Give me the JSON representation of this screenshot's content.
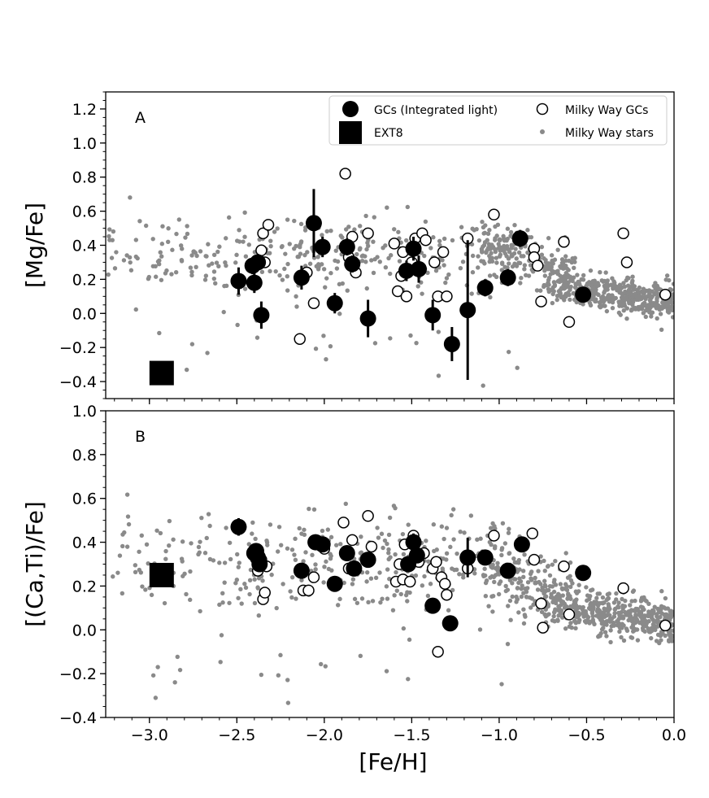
{
  "chart_data": [
    {
      "type": "scatter",
      "panel_label": "A",
      "ylabel": "[Mg/Fe]",
      "xlabel": "",
      "xlim": [
        -3.25,
        0.0
      ],
      "ylim": [
        -0.5,
        1.3
      ],
      "yticks": [
        -0.4,
        -0.2,
        0.0,
        0.2,
        0.4,
        0.6,
        0.8,
        1.0,
        1.2
      ],
      "ytick_labels": [
        "−0.4",
        "−0.2",
        "0.0",
        "0.2",
        "0.4",
        "0.6",
        "0.8",
        "1.0",
        "1.2"
      ],
      "legend": {
        "placement": "top-right",
        "entries": [
          "GCs (Integrated light)",
          "EXT8",
          "Milky Way GCs",
          "Milky Way stars"
        ]
      },
      "series": [
        {
          "name": "EXT8",
          "marker": "filled-square",
          "points": [
            [
              -2.93,
              -0.35
            ]
          ]
        },
        {
          "name": "GCs (Integrated light)",
          "marker": "filled-circle",
          "points": [
            [
              -2.49,
              0.19,
              0.08
            ],
            [
              -2.41,
              0.28,
              0.05
            ],
            [
              -2.4,
              0.18,
              0.06
            ],
            [
              -2.38,
              0.3,
              0.05
            ],
            [
              -2.36,
              -0.01,
              0.08
            ],
            [
              -2.13,
              0.21,
              0.07
            ],
            [
              -2.06,
              0.53,
              0.2
            ],
            [
              -2.01,
              0.39,
              0.06
            ],
            [
              -1.94,
              0.06,
              0.06
            ],
            [
              -1.87,
              0.39,
              0.05
            ],
            [
              -1.84,
              0.29,
              0.05
            ],
            [
              -1.75,
              -0.03,
              0.11
            ],
            [
              -1.53,
              0.25,
              0.06
            ],
            [
              -1.49,
              0.38,
              0.07
            ],
            [
              -1.46,
              0.26,
              0.08
            ],
            [
              -1.38,
              -0.01,
              0.09
            ],
            [
              -1.27,
              -0.18,
              0.1
            ],
            [
              -1.18,
              0.02,
              0.41
            ],
            [
              -1.08,
              0.15,
              0.05
            ],
            [
              -0.95,
              0.21,
              0.05
            ],
            [
              -0.88,
              0.44,
              0.05
            ],
            [
              -0.52,
              0.11,
              0.04
            ]
          ]
        },
        {
          "name": "Milky Way GCs",
          "marker": "open-circle",
          "points": [
            [
              -2.36,
              0.37
            ],
            [
              -2.35,
              0.47
            ],
            [
              -2.34,
              0.3
            ],
            [
              -2.32,
              0.52
            ],
            [
              -2.14,
              -0.15
            ],
            [
              -2.1,
              0.24
            ],
            [
              -2.06,
              0.06
            ],
            [
              -1.88,
              0.82
            ],
            [
              -1.86,
              0.33
            ],
            [
              -1.84,
              0.45
            ],
            [
              -1.82,
              0.24
            ],
            [
              -1.75,
              0.47
            ],
            [
              -1.6,
              0.41
            ],
            [
              -1.58,
              0.13
            ],
            [
              -1.56,
              0.22
            ],
            [
              -1.55,
              0.36
            ],
            [
              -1.53,
              0.1
            ],
            [
              -1.5,
              0.3
            ],
            [
              -1.48,
              0.44
            ],
            [
              -1.44,
              0.47
            ],
            [
              -1.42,
              0.43
            ],
            [
              -1.37,
              0.3
            ],
            [
              -1.35,
              0.1
            ],
            [
              -1.32,
              0.36
            ],
            [
              -1.3,
              0.1
            ],
            [
              -1.18,
              0.44
            ],
            [
              -1.03,
              0.58
            ],
            [
              -0.8,
              0.38
            ],
            [
              -0.8,
              0.33
            ],
            [
              -0.78,
              0.28
            ],
            [
              -0.76,
              0.07
            ],
            [
              -0.63,
              0.42
            ],
            [
              -0.6,
              -0.05
            ],
            [
              -0.29,
              0.47
            ],
            [
              -0.27,
              0.3
            ],
            [
              -0.05,
              0.11
            ]
          ]
        },
        {
          "name": "Milky Way stars",
          "marker": "small-dot",
          "count_approx": 900
        }
      ]
    },
    {
      "type": "scatter",
      "panel_label": "B",
      "ylabel": "[(Ca,Ti)/Fe]",
      "xlabel": "[Fe/H]",
      "xlim": [
        -3.25,
        0.0
      ],
      "ylim": [
        -0.4,
        1.0
      ],
      "xticks": [
        -3.0,
        -2.5,
        -2.0,
        -1.5,
        -1.0,
        -0.5,
        0.0
      ],
      "xtick_labels": [
        "−3.0",
        "−2.5",
        "−2.0",
        "−1.5",
        "−1.0",
        "−0.5",
        "0.0"
      ],
      "yticks": [
        -0.4,
        -0.2,
        0.0,
        0.2,
        0.4,
        0.6,
        0.8,
        1.0
      ],
      "ytick_labels": [
        "−0.4",
        "−0.2",
        "0.0",
        "0.2",
        "0.4",
        "0.6",
        "0.8",
        "1.0"
      ],
      "series": [
        {
          "name": "EXT8",
          "marker": "filled-square",
          "points": [
            [
              -2.93,
              0.25
            ]
          ]
        },
        {
          "name": "GCs (Integrated light)",
          "marker": "filled-circle",
          "points": [
            [
              -2.49,
              0.47,
              0.04
            ],
            [
              -2.4,
              0.35,
              0.03
            ],
            [
              -2.39,
              0.36,
              0.03
            ],
            [
              -2.38,
              0.33,
              0.03
            ],
            [
              -2.37,
              0.3,
              0.03
            ],
            [
              -2.13,
              0.27,
              0.03
            ],
            [
              -2.05,
              0.4,
              0.03
            ],
            [
              -2.01,
              0.39,
              0.03
            ],
            [
              -1.94,
              0.21,
              0.03
            ],
            [
              -1.87,
              0.35,
              0.03
            ],
            [
              -1.83,
              0.28,
              0.03
            ],
            [
              -1.75,
              0.32,
              0.03
            ],
            [
              -1.52,
              0.3,
              0.03
            ],
            [
              -1.49,
              0.4,
              0.04
            ],
            [
              -1.47,
              0.34,
              0.03
            ],
            [
              -1.38,
              0.11,
              0.03
            ],
            [
              -1.28,
              0.03,
              0.03
            ],
            [
              -1.18,
              0.33,
              0.09
            ],
            [
              -1.08,
              0.33,
              0.03
            ],
            [
              -0.95,
              0.27,
              0.03
            ],
            [
              -0.87,
              0.39,
              0.03
            ],
            [
              -0.52,
              0.26,
              0.03
            ]
          ]
        },
        {
          "name": "Milky Way GCs",
          "marker": "open-circle",
          "points": [
            [
              -2.38,
              0.27
            ],
            [
              -2.36,
              0.32
            ],
            [
              -2.35,
              0.14
            ],
            [
              -2.34,
              0.17
            ],
            [
              -2.33,
              0.29
            ],
            [
              -2.12,
              0.18
            ],
            [
              -2.09,
              0.18
            ],
            [
              -2.06,
              0.24
            ],
            [
              -2.0,
              0.37
            ],
            [
              -1.89,
              0.49
            ],
            [
              -1.86,
              0.28
            ],
            [
              -1.84,
              0.41
            ],
            [
              -1.75,
              0.52
            ],
            [
              -1.73,
              0.38
            ],
            [
              -1.59,
              0.22
            ],
            [
              -1.57,
              0.3
            ],
            [
              -1.55,
              0.23
            ],
            [
              -1.54,
              0.39
            ],
            [
              -1.51,
              0.22
            ],
            [
              -1.49,
              0.43
            ],
            [
              -1.46,
              0.31
            ],
            [
              -1.43,
              0.35
            ],
            [
              -1.38,
              0.28
            ],
            [
              -1.36,
              0.31
            ],
            [
              -1.35,
              -0.1
            ],
            [
              -1.33,
              0.24
            ],
            [
              -1.31,
              0.21
            ],
            [
              -1.3,
              0.16
            ],
            [
              -1.18,
              0.28
            ],
            [
              -1.03,
              0.43
            ],
            [
              -0.81,
              0.44
            ],
            [
              -0.8,
              0.32
            ],
            [
              -0.76,
              0.12
            ],
            [
              -0.75,
              0.01
            ],
            [
              -0.63,
              0.29
            ],
            [
              -0.6,
              0.07
            ],
            [
              -0.29,
              0.19
            ],
            [
              -0.05,
              0.02
            ]
          ]
        },
        {
          "name": "Milky Way stars",
          "marker": "small-dot",
          "count_approx": 900
        }
      ]
    }
  ]
}
